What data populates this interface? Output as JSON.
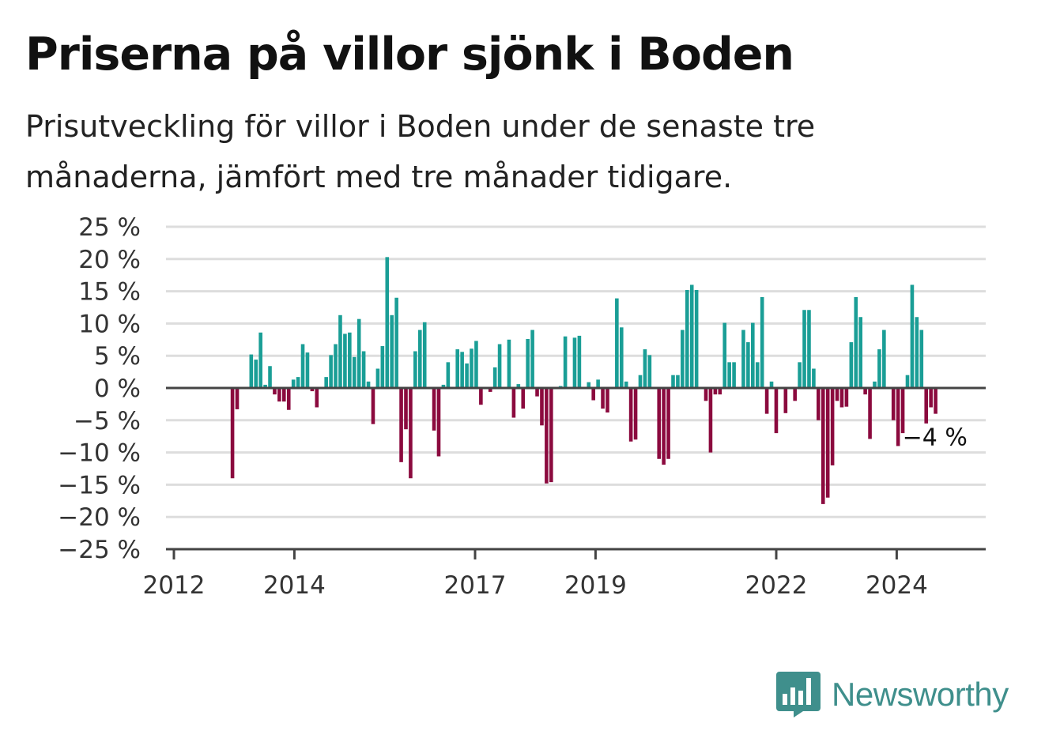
{
  "title": "Priserna på villor sjönk i Boden",
  "subtitle": "Prisutveckling för villor i Boden under de senaste tre månaderna, jämfört med tre månader tidigare.",
  "brand": {
    "name": "Newsworthy",
    "color": "#3f8f8c",
    "icon": "newsworthy-chart-bubble-icon"
  },
  "colors": {
    "positive": "#1a9e96",
    "negative": "#8b0a3e",
    "grid": "#dddddd",
    "axis": "#444444"
  },
  "chart_data": {
    "type": "bar",
    "x_ticks": [
      "2012",
      "2014",
      "2017",
      "2019",
      "2022",
      "2024"
    ],
    "y_ticks": [
      "25 %",
      "20 %",
      "15 %",
      "10 %",
      "5 %",
      "0 %",
      "−5 %",
      "−10 %",
      "−15 %",
      "−20 %",
      "−25 %"
    ],
    "ylim": [
      -25,
      25
    ],
    "grid": true,
    "last_value_label": "−4 %",
    "series": [
      {
        "values": [
          0,
          0,
          0,
          0,
          0,
          0,
          -14,
          -3.3,
          0,
          0,
          5.2,
          4.4,
          8.6,
          0.5,
          3.4,
          -1,
          -2.1,
          -2.1,
          -3.4,
          1.3,
          1.7,
          6.8,
          5.5,
          -0.5,
          -3,
          0,
          1.7,
          5.1,
          6.8,
          11.3,
          8.4,
          8.6,
          4.8,
          10.7,
          5.7,
          1.0,
          -5.6,
          3.0,
          6.5,
          20.3,
          11.3,
          14.0,
          -11.5,
          -6.4,
          -14.0,
          5.7,
          9.0,
          10.2,
          0,
          -6.6,
          -10.6,
          0.5,
          4.0,
          0,
          6.0,
          5.6,
          3.8,
          6.1,
          7.3,
          -2.6,
          0,
          -0.6,
          3.2,
          6.8,
          0,
          7.5,
          -4.6,
          0.6,
          -3.2,
          7.6,
          9.0,
          -1.3,
          -5.8,
          -14.8,
          -14.6,
          0,
          0.3,
          8.0,
          0,
          7.8,
          8.1,
          0,
          0.9,
          -1.9,
          1.3,
          -3.2,
          -3.8,
          0,
          13.9,
          9.4,
          1.0,
          -8.3,
          -8.0,
          2.0,
          6.0,
          5.1,
          0,
          -11.0,
          -11.9,
          -11.0,
          2.0,
          2.0,
          9.0,
          15.2,
          16.0,
          15.2,
          0,
          -2.0,
          -10.0,
          -1.0,
          -1.0,
          10.1,
          4.0,
          4.0,
          0,
          9.0,
          7.1,
          10.1,
          4.0,
          14.1,
          -4.0,
          1.0,
          -7.0,
          0,
          -3.9,
          0,
          -2.0,
          4.0,
          12.1,
          12.1,
          3.0,
          -5.0,
          -18.0,
          -17.0,
          -12.0,
          -2.0,
          -3.0,
          -2.9,
          7.1,
          14.1,
          11.0,
          -1.0,
          -7.9,
          1.0,
          6.0,
          9.0,
          0,
          -5.0,
          -9.0,
          -7.0,
          2.0,
          16.0,
          11.0,
          9.0,
          -5.5,
          -3.0,
          -4.0
        ]
      }
    ]
  }
}
